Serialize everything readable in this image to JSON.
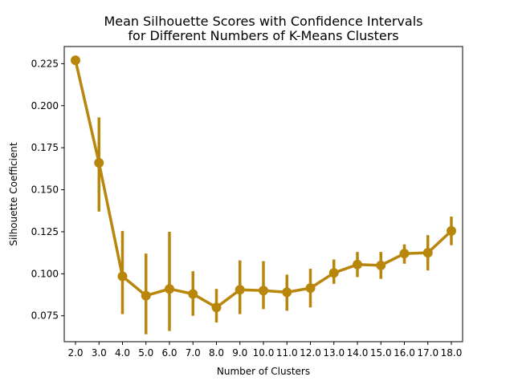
{
  "chart_data": {
    "type": "line",
    "title_lines": [
      "Mean Silhouette Scores with Confidence Intervals",
      "for Different Numbers of K-Means Clusters"
    ],
    "xlabel": "Number of Clusters",
    "ylabel": "Silhouette Coefficient",
    "categories": [
      "2.0",
      "3.0",
      "4.0",
      "5.0",
      "6.0",
      "7.0",
      "8.0",
      "9.0",
      "10.0",
      "11.0",
      "12.0",
      "13.0",
      "14.0",
      "15.0",
      "16.0",
      "17.0",
      "18.0"
    ],
    "values": [
      0.227,
      0.166,
      0.0985,
      0.087,
      0.091,
      0.088,
      0.08,
      0.0905,
      0.09,
      0.089,
      0.0915,
      0.1005,
      0.1055,
      0.105,
      0.112,
      0.1125,
      0.1255
    ],
    "ci_low": [
      0.227,
      0.137,
      0.076,
      0.064,
      0.066,
      0.075,
      0.071,
      0.076,
      0.079,
      0.078,
      0.08,
      0.094,
      0.098,
      0.097,
      0.106,
      0.102,
      0.117
    ],
    "ci_high": [
      0.227,
      0.193,
      0.1255,
      0.112,
      0.125,
      0.1015,
      0.091,
      0.108,
      0.1075,
      0.0995,
      0.103,
      0.1085,
      0.113,
      0.113,
      0.1175,
      0.123,
      0.134
    ],
    "yticks": [
      "0.075",
      "0.100",
      "0.125",
      "0.150",
      "0.175",
      "0.200",
      "0.225"
    ],
    "ylim": [
      0.0596,
      0.2352
    ],
    "grid": false,
    "color": "#b8860b"
  }
}
